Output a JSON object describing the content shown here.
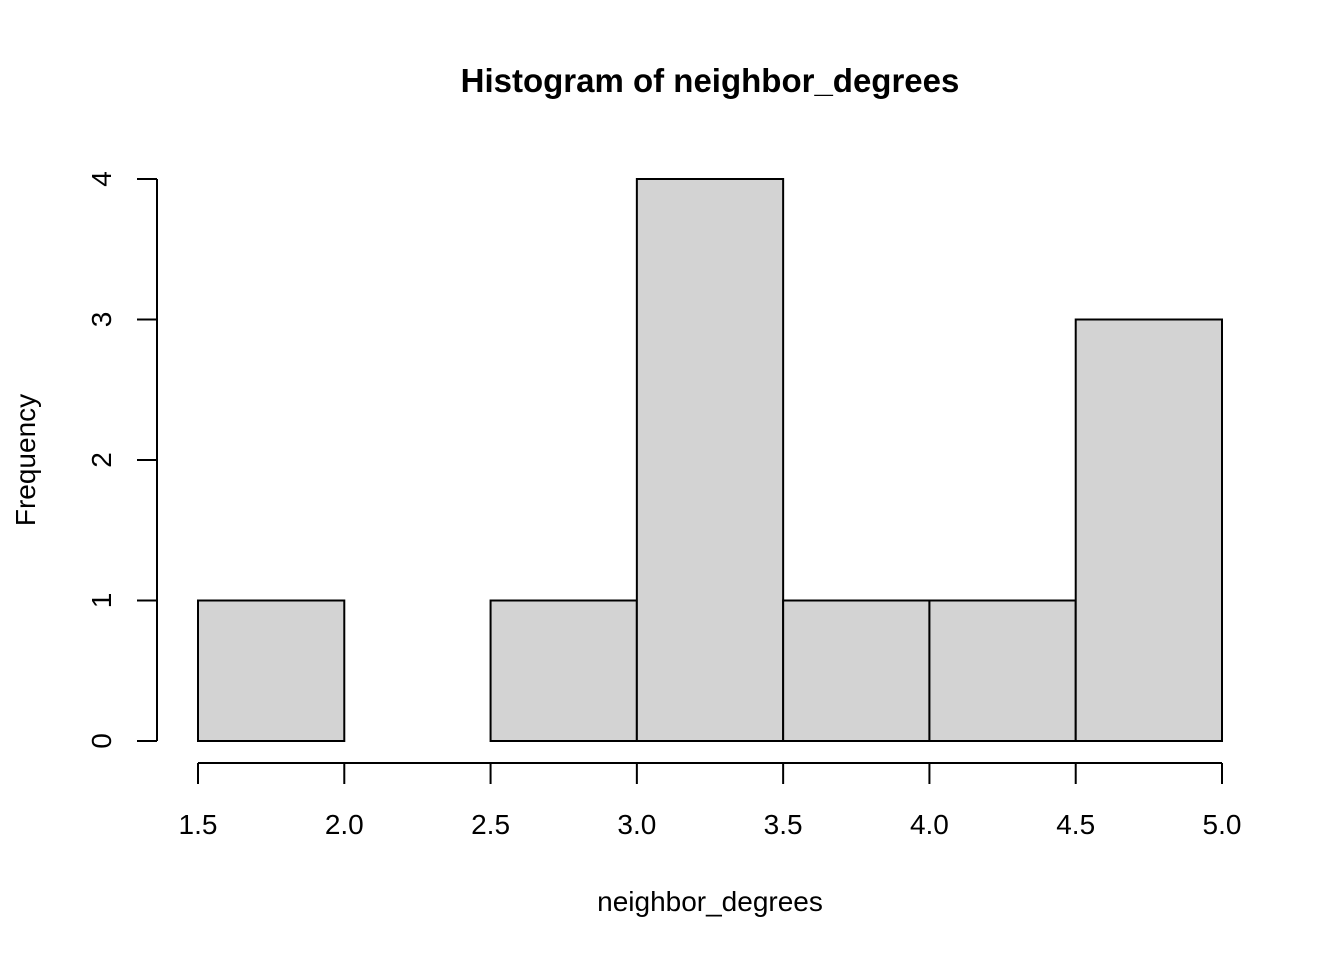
{
  "chart_data": {
    "type": "bar",
    "subtype": "histogram",
    "title": "Histogram of neighbor_degrees",
    "xlabel": "neighbor_degrees",
    "ylabel": "Frequency",
    "bin_edges": [
      1.5,
      2.0,
      2.5,
      3.0,
      3.5,
      4.0,
      4.5,
      5.0
    ],
    "values": [
      1,
      0,
      1,
      4,
      1,
      1,
      3
    ],
    "xlim": [
      1.5,
      5.0
    ],
    "ylim": [
      0,
      4
    ],
    "x_ticks": [
      "1.5",
      "2.0",
      "2.5",
      "3.0",
      "3.5",
      "4.0",
      "4.5",
      "5.0"
    ],
    "y_ticks": [
      "0",
      "1",
      "2",
      "3",
      "4"
    ],
    "bar_color": "#d3d3d3",
    "grid": false,
    "legend": "none"
  }
}
